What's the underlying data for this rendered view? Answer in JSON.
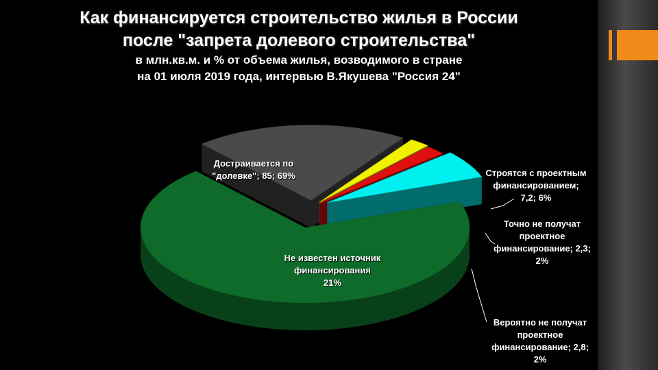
{
  "title_lines": [
    "Как финансируется строительство жилья в России",
    "после \"запрета долевого строительства\""
  ],
  "subtitle_lines": [
    "в млн.кв.м. и % от объема жилья, возводимого в стране",
    "на 01 июля 2019 года, интервью В.Якушева \"Россия 24\""
  ],
  "colors": {
    "background": "#000000",
    "accent": "#f08a18",
    "dolevka": "#0e6b2a",
    "unknown": "#4a4a4a",
    "likely_not": "#f2f200",
    "definitely_not": "#e01010",
    "project": "#00f0f0"
  },
  "chart_data": {
    "type": "pie",
    "style": "3d-exploded",
    "slices": [
      {
        "key": "dolevka",
        "value_mln_sqm": 85,
        "percent": 69,
        "label_lines": [
          "Достраивается по",
          "\"долевке\"; 85; 69%"
        ]
      },
      {
        "key": "unknown",
        "percent": 21,
        "label_lines": [
          "Не известен источник",
          "финансирования",
          "21%"
        ]
      },
      {
        "key": "likely_not",
        "value_mln_sqm": 2.8,
        "percent": 2,
        "label_lines": [
          "Вероятно не получат",
          "проектное",
          "финансирование; 2,8;",
          "2%"
        ]
      },
      {
        "key": "definitely_not",
        "value_mln_sqm": 2.3,
        "percent": 2,
        "label_lines": [
          "Точно не получат",
          "проектное",
          "финансирование; 2,3;",
          "2%"
        ]
      },
      {
        "key": "project",
        "value_mln_sqm": 7.2,
        "percent": 6,
        "label_lines": [
          "Строятся с проектным",
          "финансированием;",
          "7,2; 6%"
        ]
      }
    ]
  }
}
